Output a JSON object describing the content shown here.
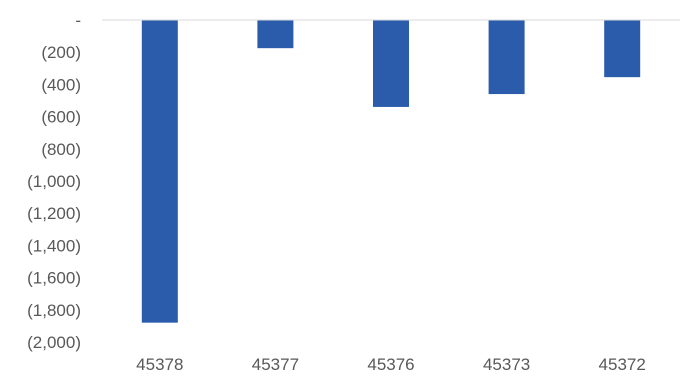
{
  "chart_data": {
    "type": "bar",
    "title": "",
    "xlabel": "",
    "ylabel": "",
    "categories": [
      "45378",
      "45377",
      "45376",
      "45373",
      "45372"
    ],
    "values": [
      -1880,
      -175,
      -540,
      -460,
      -355
    ],
    "ylim": [
      -2000,
      0
    ],
    "yticks": [
      0,
      -200,
      -400,
      -600,
      -800,
      -1000,
      -1200,
      -1400,
      -1600,
      -1800,
      -2000
    ],
    "ytick_labels": [
      "-",
      "(200)",
      "(400)",
      "(600)",
      "(800)",
      "(1,000)",
      "(1,200)",
      "(1,400)",
      "(1,600)",
      "(1,800)",
      "(2,000)"
    ],
    "grid": false,
    "legend": "none",
    "bar_color": "#2a5cab",
    "axis_color": "#d9d9d9",
    "text_color": "#595959"
  }
}
